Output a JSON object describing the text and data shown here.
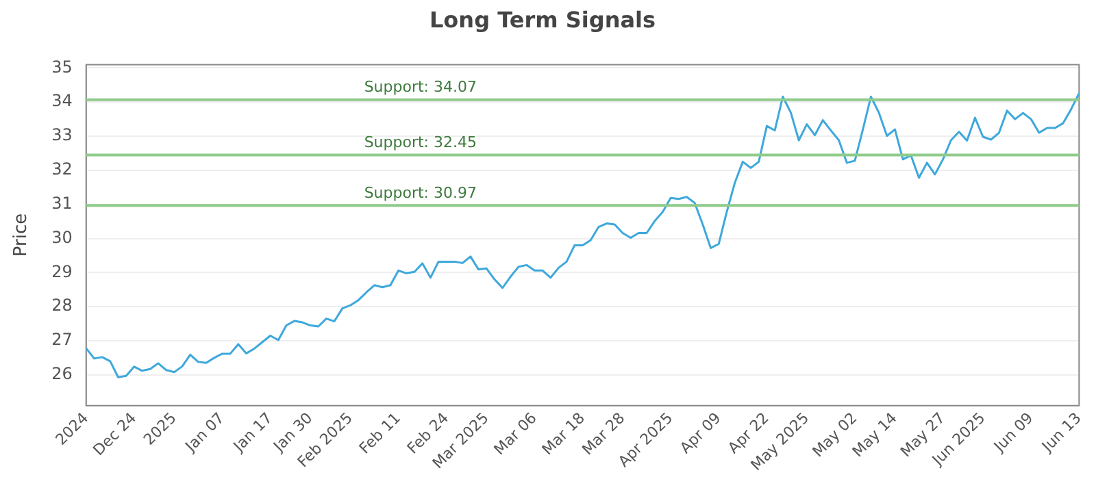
{
  "chart_data": {
    "type": "line",
    "title": "Long Term Signals",
    "ylabel": "Price",
    "categories": [
      "2024",
      null,
      null,
      null,
      null,
      null,
      "Dec 24",
      null,
      null,
      null,
      null,
      "2025",
      null,
      null,
      null,
      null,
      null,
      "Jan 07",
      null,
      null,
      null,
      null,
      null,
      "Jan 17",
      null,
      null,
      null,
      null,
      "Jan 30",
      null,
      null,
      null,
      null,
      "Feb 2025",
      null,
      null,
      null,
      null,
      null,
      "Feb 11",
      null,
      null,
      null,
      null,
      null,
      "Feb 24",
      null,
      null,
      null,
      null,
      "Mar 2025",
      null,
      null,
      null,
      null,
      null,
      "Mar 06",
      null,
      null,
      null,
      null,
      null,
      "Mar 18",
      null,
      null,
      null,
      null,
      "Mar 28",
      null,
      null,
      null,
      null,
      null,
      "Apr 2025",
      null,
      null,
      null,
      null,
      null,
      "Apr 09",
      null,
      null,
      null,
      null,
      null,
      "Apr 22",
      null,
      null,
      null,
      null,
      "May 2025",
      null,
      null,
      null,
      null,
      null,
      "May 02",
      null,
      null,
      null,
      null,
      "May 14",
      null,
      null,
      null,
      null,
      null,
      "May 27",
      null,
      null,
      null,
      null,
      "Jun 2025",
      null,
      null,
      null,
      null,
      null,
      "Jun 09",
      null,
      null,
      null,
      null,
      null,
      "Jun 13"
    ],
    "series": [
      {
        "color": "#3ea8dc",
        "values": [
          26.78,
          26.48,
          26.52,
          26.4,
          25.93,
          25.97,
          26.24,
          26.12,
          26.17,
          26.34,
          26.14,
          26.08,
          26.25,
          26.59,
          26.38,
          26.35,
          26.5,
          26.62,
          26.62,
          26.9,
          26.63,
          26.77,
          26.96,
          27.15,
          27.02,
          27.45,
          27.58,
          27.54,
          27.45,
          27.42,
          27.65,
          27.57,
          27.95,
          28.04,
          28.19,
          28.42,
          28.63,
          28.57,
          28.63,
          29.06,
          28.98,
          29.02,
          29.27,
          28.85,
          29.32,
          29.32,
          29.32,
          29.28,
          29.47,
          29.09,
          29.12,
          28.8,
          28.55,
          28.88,
          29.17,
          29.22,
          29.06,
          29.06,
          28.85,
          29.14,
          29.32,
          29.8,
          29.8,
          29.95,
          30.34,
          30.44,
          30.41,
          30.16,
          30.02,
          30.16,
          30.16,
          30.51,
          30.78,
          31.19,
          31.16,
          31.22,
          31.04,
          30.41,
          29.72,
          29.84,
          30.78,
          31.63,
          32.25,
          32.07,
          32.25,
          33.3,
          33.17,
          34.16,
          33.69,
          32.88,
          33.35,
          33.03,
          33.47,
          33.17,
          32.88,
          32.22,
          32.28,
          33.2,
          34.16,
          33.69,
          33.01,
          33.2,
          32.32,
          32.44,
          31.78,
          32.22,
          31.88,
          32.32,
          32.88,
          33.13,
          32.87,
          33.54,
          32.98,
          32.9,
          33.1,
          33.75,
          33.5,
          33.68,
          33.5,
          33.1,
          33.24,
          33.24,
          33.38,
          33.79,
          34.26
        ]
      }
    ],
    "ylim": [
      25.1,
      35.1
    ],
    "yticks": [
      26,
      27,
      28,
      29,
      30,
      31,
      32,
      33,
      34,
      35
    ],
    "grid": "y",
    "marker": "none",
    "line_style": "solid",
    "legend": false,
    "ref_lines": [
      {
        "axis": "y",
        "value": 34.07,
        "label": "Support: 34.07",
        "color": "#8fcb8a"
      },
      {
        "axis": "y",
        "value": 32.45,
        "label": "Support: 32.45",
        "color": "#8fcb8a"
      },
      {
        "axis": "y",
        "value": 30.97,
        "label": "Support: 30.97",
        "color": "#8fcb8a"
      }
    ]
  }
}
